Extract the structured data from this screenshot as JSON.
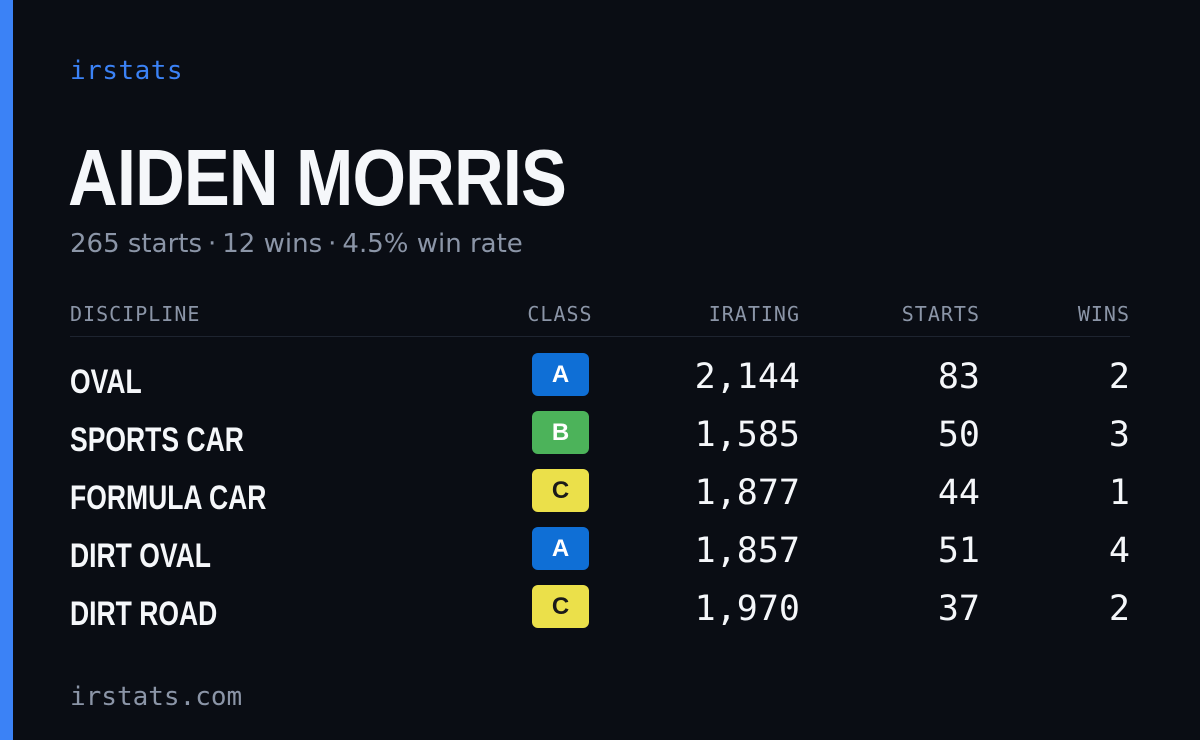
{
  "brand": "irstats",
  "driver": {
    "name": "AIDEN MORRIS",
    "starts_text": "265 starts",
    "wins_text": "12 wins",
    "win_rate_text": "4.5% win rate",
    "separator": "·"
  },
  "table": {
    "headers": {
      "discipline": "DISCIPLINE",
      "class": "CLASS",
      "irating": "IRATING",
      "starts": "STARTS",
      "wins": "WINS"
    },
    "rows": [
      {
        "discipline": "OVAL",
        "class": "A",
        "irating": "2,144",
        "starts": "83",
        "wins": "2"
      },
      {
        "discipline": "SPORTS CAR",
        "class": "B",
        "irating": "1,585",
        "starts": "50",
        "wins": "3"
      },
      {
        "discipline": "FORMULA CAR",
        "class": "C",
        "irating": "1,877",
        "starts": "44",
        "wins": "1"
      },
      {
        "discipline": "DIRT OVAL",
        "class": "A",
        "irating": "1,857",
        "starts": "51",
        "wins": "4"
      },
      {
        "discipline": "DIRT ROAD",
        "class": "C",
        "irating": "1,970",
        "starts": "37",
        "wins": "2"
      }
    ]
  },
  "class_colors": {
    "A": {
      "bg": "#0f6fd6",
      "fg": "#ffffff"
    },
    "B": {
      "bg": "#4cb35a",
      "fg": "#ffffff"
    },
    "C": {
      "bg": "#ebe04a",
      "fg": "#1a1a1a"
    }
  },
  "footer": "irstats.com"
}
